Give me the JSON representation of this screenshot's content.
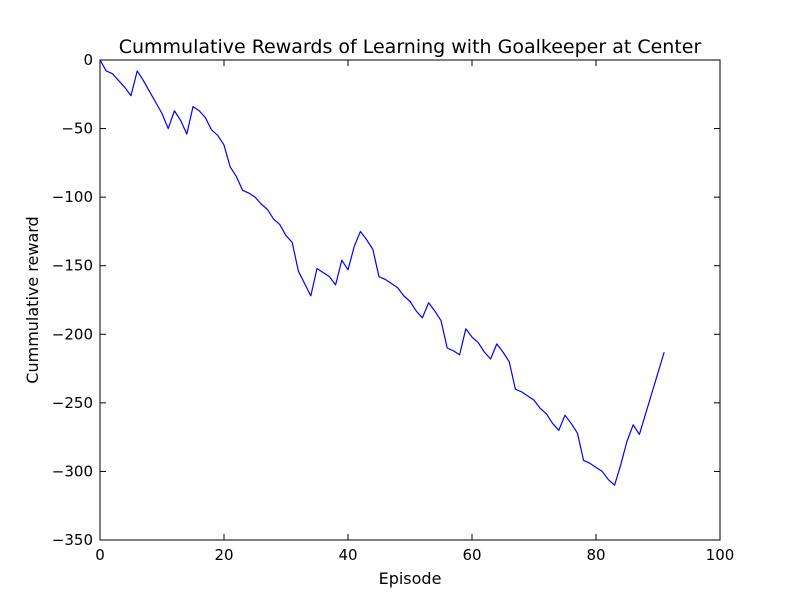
{
  "chart_data": {
    "type": "line",
    "title": "Cummulative Rewards of Learning with Goalkeeper at Center",
    "xlabel": "Episode",
    "ylabel": "Cummulative reward",
    "xlim": [
      0,
      100
    ],
    "ylim": [
      -350,
      0
    ],
    "xticks": [
      0,
      20,
      40,
      60,
      80,
      100
    ],
    "yticks": [
      0,
      -50,
      -100,
      -150,
      -200,
      -250,
      -300,
      -350
    ],
    "xtick_labels": [
      "0",
      "20",
      "40",
      "60",
      "80",
      "100"
    ],
    "ytick_labels": [
      "0",
      "−50",
      "−100",
      "−150",
      "−200",
      "−250",
      "−300",
      "−350"
    ],
    "grid": false,
    "legend": "none",
    "line_color": "#0000ff",
    "series": [
      {
        "x": [
          0,
          1,
          2,
          3,
          4,
          5,
          6,
          7,
          8,
          9,
          10,
          11,
          12,
          13,
          14,
          15,
          16,
          17,
          18,
          19,
          20,
          21,
          22,
          23,
          24,
          25,
          26,
          27,
          28,
          29,
          30,
          31,
          32,
          33,
          34,
          35,
          36,
          37,
          38,
          39,
          40,
          41,
          42,
          43,
          44,
          45,
          46,
          47,
          48,
          49,
          50,
          51,
          52,
          53,
          54,
          55,
          56,
          57,
          58,
          59,
          60,
          61,
          62,
          63,
          64,
          65,
          66,
          67,
          68,
          69,
          70,
          71,
          72,
          73,
          74,
          75,
          76,
          77,
          78,
          79,
          80,
          81,
          82,
          83,
          84,
          85,
          86,
          87,
          88,
          89,
          90,
          91
        ],
        "y": [
          0,
          -8,
          -10,
          -15,
          -20,
          -26,
          -8,
          -15,
          -23,
          -31,
          -39,
          -50,
          -37,
          -44,
          -54,
          -34,
          -37,
          -42,
          -51,
          -55,
          -62,
          -78,
          -85,
          -95,
          -97,
          -100,
          -105,
          -109,
          -116,
          -120,
          -128,
          -133,
          -154,
          -163,
          -172,
          -152,
          -155,
          -158,
          -164,
          -146,
          -153,
          -136,
          -125,
          -131,
          -138,
          -158,
          -160,
          -163,
          -166,
          -172,
          -176,
          -183,
          -188,
          -177,
          -183,
          -190,
          -210,
          -212,
          -215,
          -196,
          -202,
          -206,
          -213,
          -218,
          -207,
          -213,
          -220,
          -240,
          -242,
          -245,
          -248,
          -254,
          -258,
          -265,
          -270,
          -259,
          -265,
          -272,
          -292,
          -294,
          -297,
          -300,
          -306,
          -310,
          -295,
          -278,
          -266,
          -273,
          -258,
          -243,
          -228,
          -213
        ]
      }
    ]
  }
}
